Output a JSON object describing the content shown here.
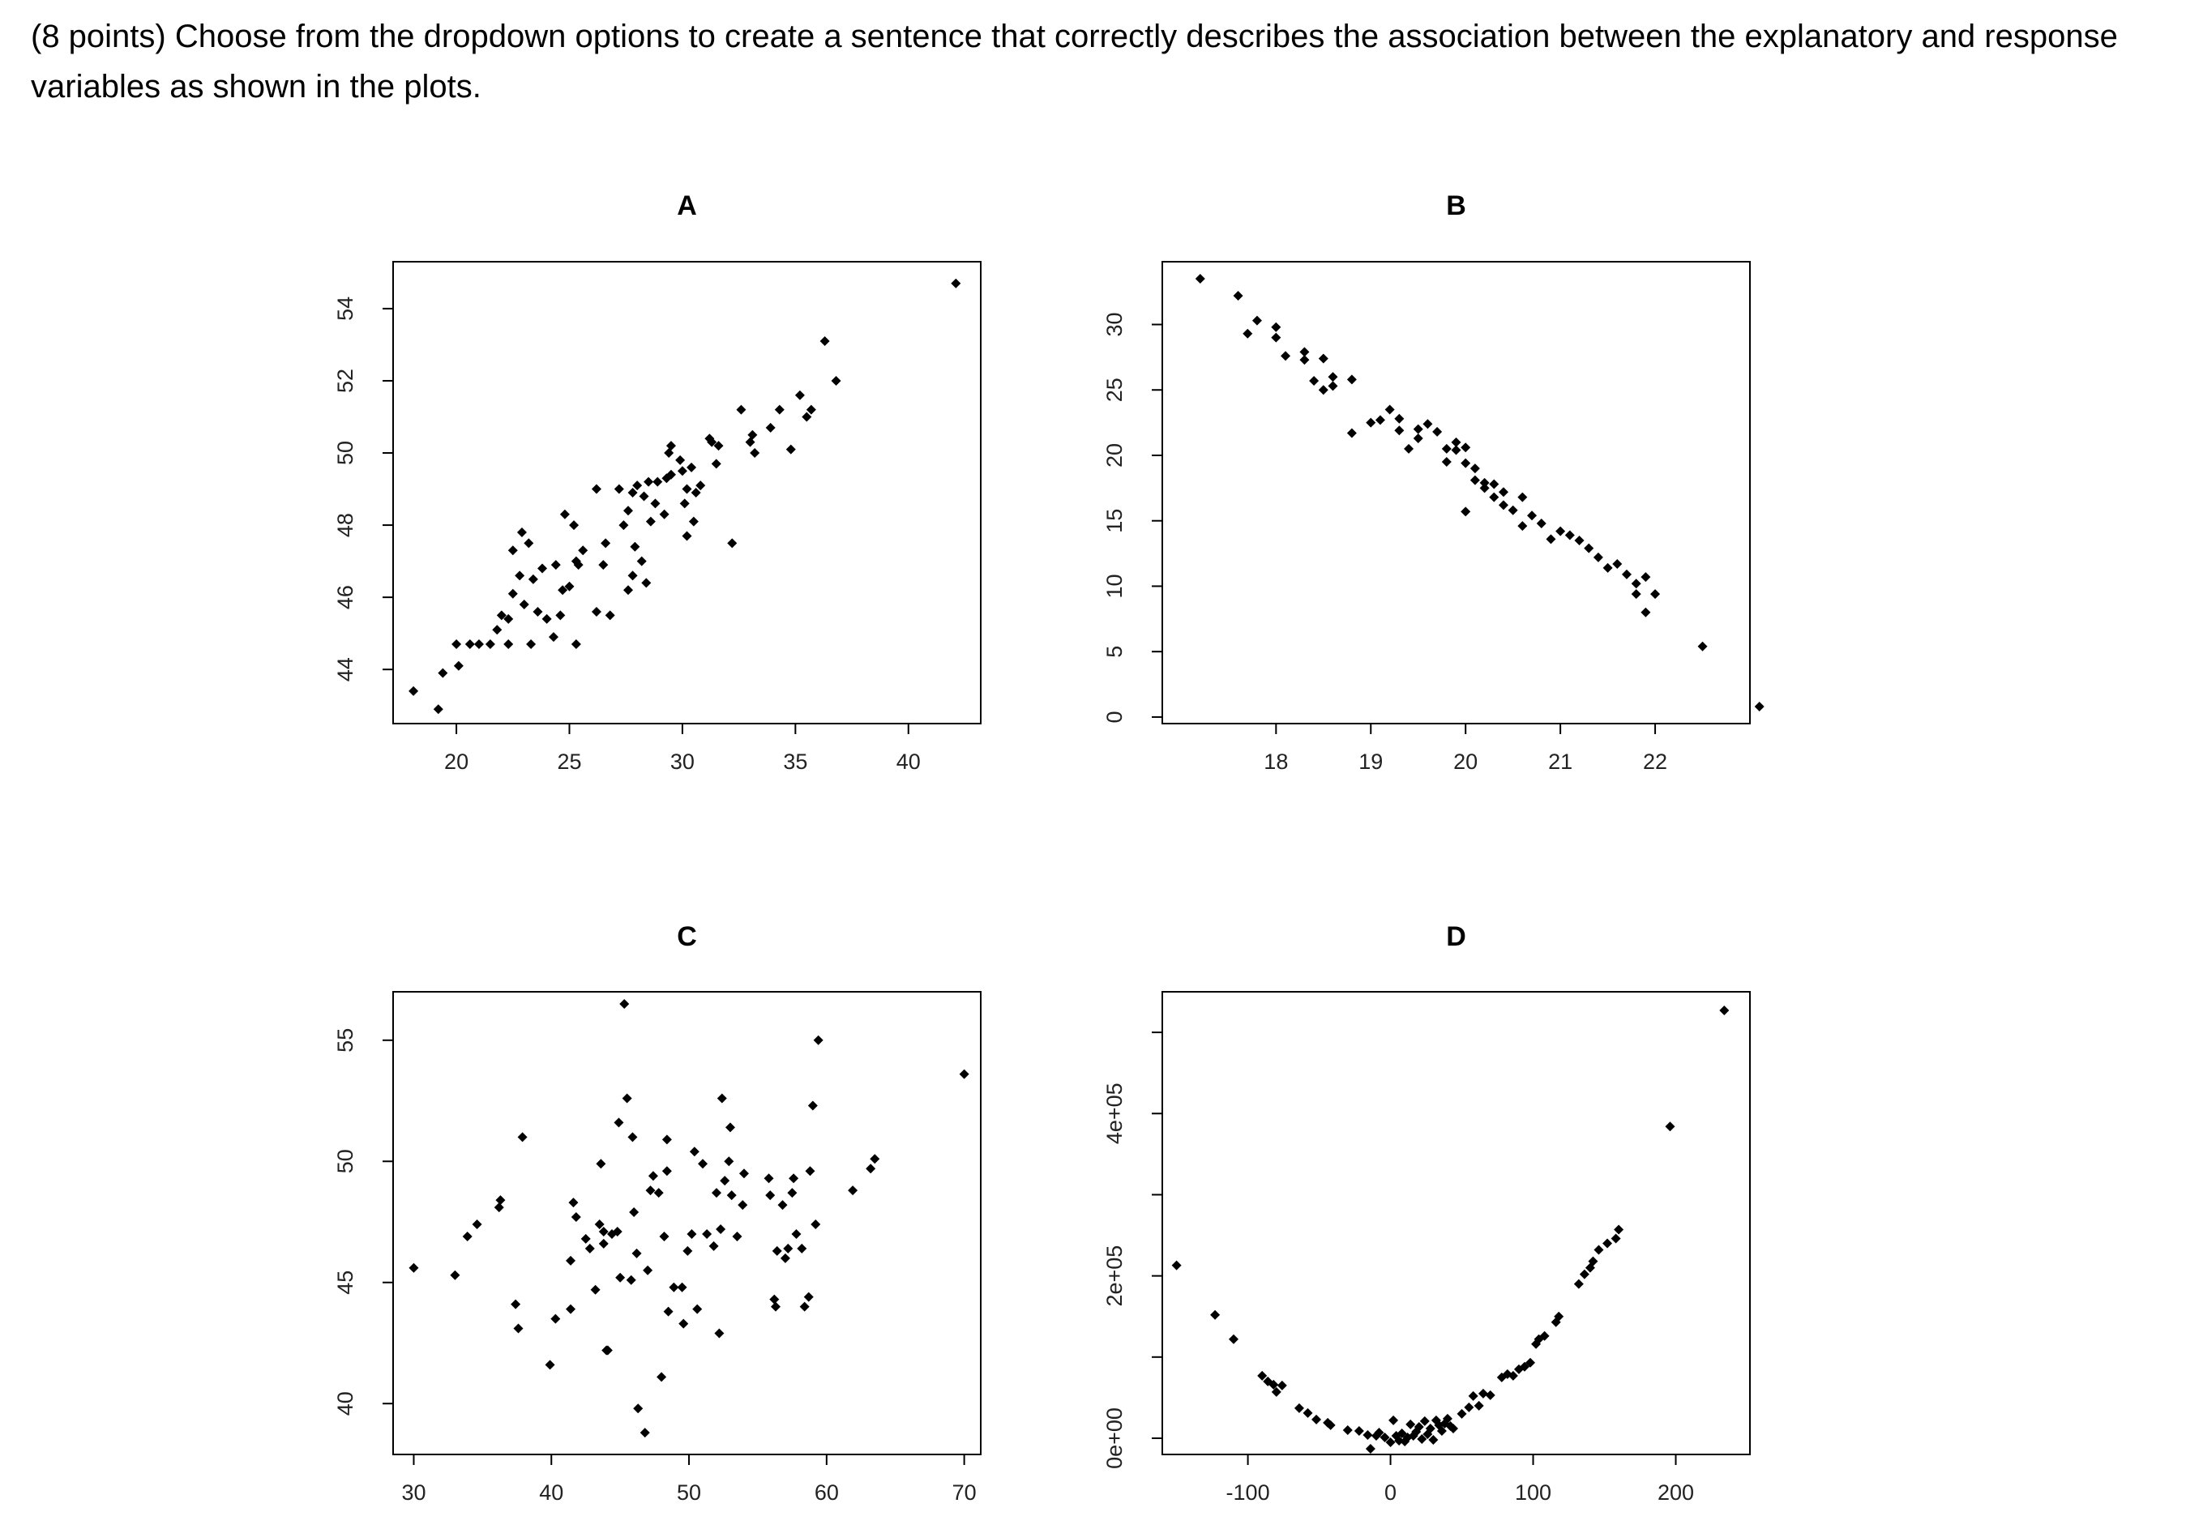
{
  "question": {
    "text": "(8 points) Choose from the dropdown options to create a sentence that correctly describes the association between the explanatory and response variables as shown in the plots."
  },
  "chart_data": [
    {
      "type": "scatter",
      "title": "A",
      "xlabel": "",
      "ylabel": "",
      "xlim": [
        17.2,
        43.2
      ],
      "ylim": [
        42.5,
        55.3
      ],
      "xticks": [
        20,
        25,
        30,
        35,
        40
      ],
      "xtick_labels": [
        "20",
        "25",
        "30",
        "35",
        "40"
      ],
      "yticks": [
        44,
        46,
        48,
        50,
        52,
        54
      ],
      "ytick_labels": [
        "44",
        "46",
        "48",
        "50",
        "52",
        "54"
      ],
      "points": [
        [
          18.1,
          43.4
        ],
        [
          19.2,
          42.9
        ],
        [
          19.4,
          43.9
        ],
        [
          20.1,
          44.1
        ],
        [
          20.0,
          44.7
        ],
        [
          20.6,
          44.7
        ],
        [
          21.0,
          44.7
        ],
        [
          21.5,
          44.7
        ],
        [
          21.8,
          45.1
        ],
        [
          22.0,
          45.5
        ],
        [
          22.3,
          45.4
        ],
        [
          22.5,
          46.1
        ],
        [
          22.8,
          46.6
        ],
        [
          22.5,
          47.3
        ],
        [
          23.2,
          47.5
        ],
        [
          22.9,
          47.8
        ],
        [
          22.3,
          44.7
        ],
        [
          23.3,
          44.7
        ],
        [
          23.0,
          45.8
        ],
        [
          23.6,
          45.6
        ],
        [
          23.4,
          46.5
        ],
        [
          24.0,
          45.4
        ],
        [
          23.8,
          46.8
        ],
        [
          24.4,
          46.9
        ],
        [
          24.3,
          44.9
        ],
        [
          24.6,
          45.5
        ],
        [
          24.7,
          46.2
        ],
        [
          25.0,
          46.3
        ],
        [
          25.3,
          47.0
        ],
        [
          25.6,
          47.3
        ],
        [
          25.3,
          44.7
        ],
        [
          25.4,
          46.9
        ],
        [
          24.8,
          48.3
        ],
        [
          25.2,
          48.0
        ],
        [
          26.2,
          49.0
        ],
        [
          26.2,
          45.6
        ],
        [
          26.8,
          45.5
        ],
        [
          26.5,
          46.9
        ],
        [
          26.6,
          47.5
        ],
        [
          27.4,
          48.0
        ],
        [
          27.6,
          48.4
        ],
        [
          27.2,
          49.0
        ],
        [
          27.8,
          48.9
        ],
        [
          27.6,
          46.2
        ],
        [
          27.8,
          46.6
        ],
        [
          27.9,
          47.4
        ],
        [
          28.2,
          47.0
        ],
        [
          28.4,
          46.4
        ],
        [
          28.0,
          49.1
        ],
        [
          28.3,
          48.8
        ],
        [
          28.5,
          49.2
        ],
        [
          28.9,
          49.2
        ],
        [
          28.8,
          48.6
        ],
        [
          28.6,
          48.1
        ],
        [
          29.2,
          48.3
        ],
        [
          29.3,
          49.3
        ],
        [
          29.5,
          49.4
        ],
        [
          29.4,
          50.0
        ],
        [
          29.5,
          50.2
        ],
        [
          29.9,
          49.8
        ],
        [
          30.0,
          49.5
        ],
        [
          30.2,
          49.0
        ],
        [
          30.1,
          48.6
        ],
        [
          30.4,
          49.6
        ],
        [
          30.5,
          48.1
        ],
        [
          30.2,
          47.7
        ],
        [
          30.6,
          48.9
        ],
        [
          30.8,
          49.1
        ],
        [
          31.2,
          50.4
        ],
        [
          31.5,
          49.7
        ],
        [
          31.6,
          50.2
        ],
        [
          31.3,
          50.3
        ],
        [
          32.2,
          47.5
        ],
        [
          32.6,
          51.2
        ],
        [
          33.2,
          50.0
        ],
        [
          33.1,
          50.5
        ],
        [
          33.0,
          50.3
        ],
        [
          33.9,
          50.7
        ],
        [
          34.3,
          51.2
        ],
        [
          34.8,
          50.1
        ],
        [
          35.5,
          51.0
        ],
        [
          35.2,
          51.6
        ],
        [
          35.7,
          51.2
        ],
        [
          36.3,
          53.1
        ],
        [
          36.8,
          52.0
        ],
        [
          42.1,
          54.7
        ]
      ]
    },
    {
      "type": "scatter",
      "title": "B",
      "xlabel": "",
      "ylabel": "",
      "xlim": [
        16.8,
        23.0
      ],
      "ylim": [
        -0.5,
        34.8
      ],
      "xticks": [
        18,
        19,
        20,
        21,
        22
      ],
      "xtick_labels": [
        "18",
        "19",
        "20",
        "21",
        "22"
      ],
      "yticks": [
        0,
        5,
        10,
        15,
        20,
        25,
        30
      ],
      "ytick_labels": [
        "0",
        "5",
        "10",
        "15",
        "20",
        "25",
        "30"
      ],
      "points": [
        [
          17.2,
          33.5
        ],
        [
          17.6,
          32.2
        ],
        [
          17.7,
          29.3
        ],
        [
          17.8,
          30.3
        ],
        [
          18.0,
          29.0
        ],
        [
          18.0,
          29.8
        ],
        [
          18.1,
          27.6
        ],
        [
          18.3,
          27.9
        ],
        [
          18.3,
          27.3
        ],
        [
          18.4,
          25.7
        ],
        [
          18.5,
          27.4
        ],
        [
          18.6,
          26.0
        ],
        [
          18.5,
          25.0
        ],
        [
          18.8,
          25.8
        ],
        [
          18.6,
          25.3
        ],
        [
          18.8,
          21.7
        ],
        [
          19.0,
          22.5
        ],
        [
          19.1,
          22.7
        ],
        [
          19.2,
          23.5
        ],
        [
          19.3,
          22.8
        ],
        [
          19.3,
          21.9
        ],
        [
          19.5,
          22.0
        ],
        [
          19.5,
          21.3
        ],
        [
          19.6,
          22.4
        ],
        [
          19.7,
          21.8
        ],
        [
          19.8,
          20.5
        ],
        [
          19.9,
          21.0
        ],
        [
          19.8,
          19.5
        ],
        [
          20.0,
          20.6
        ],
        [
          20.0,
          19.4
        ],
        [
          20.1,
          19.0
        ],
        [
          20.1,
          18.1
        ],
        [
          20.2,
          17.5
        ],
        [
          20.3,
          17.8
        ],
        [
          20.3,
          16.8
        ],
        [
          20.4,
          17.2
        ],
        [
          20.4,
          16.2
        ],
        [
          20.6,
          16.8
        ],
        [
          20.5,
          15.8
        ],
        [
          20.7,
          15.4
        ],
        [
          20.8,
          14.8
        ],
        [
          20.9,
          13.6
        ],
        [
          21.0,
          14.2
        ],
        [
          21.1,
          13.9
        ],
        [
          21.2,
          13.5
        ],
        [
          21.4,
          12.2
        ],
        [
          21.5,
          11.4
        ],
        [
          21.6,
          11.7
        ],
        [
          21.7,
          10.9
        ],
        [
          21.8,
          10.2
        ],
        [
          21.8,
          9.4
        ],
        [
          21.9,
          10.7
        ],
        [
          22.0,
          9.4
        ],
        [
          21.9,
          8.0
        ],
        [
          22.5,
          5.4
        ],
        [
          23.1,
          0.8
        ],
        [
          19.9,
          20.4
        ],
        [
          20.2,
          17.9
        ],
        [
          20.6,
          14.6
        ],
        [
          21.3,
          12.9
        ],
        [
          20.0,
          15.7
        ],
        [
          19.4,
          20.5
        ]
      ]
    },
    {
      "type": "scatter",
      "title": "C",
      "xlabel": "",
      "ylabel": "",
      "xlim": [
        28.5,
        71.2
      ],
      "ylim": [
        37.9,
        57.0
      ],
      "xticks": [
        30,
        40,
        50,
        60,
        70
      ],
      "xtick_labels": [
        "30",
        "40",
        "50",
        "60",
        "70"
      ],
      "yticks": [
        40,
        45,
        50,
        55
      ],
      "ytick_labels": [
        "40",
        "45",
        "50",
        "55"
      ],
      "points": [
        [
          30.0,
          45.6
        ],
        [
          33.0,
          45.3
        ],
        [
          33.9,
          46.9
        ],
        [
          34.6,
          47.4
        ],
        [
          36.2,
          48.1
        ],
        [
          36.3,
          48.4
        ],
        [
          37.4,
          44.1
        ],
        [
          37.6,
          43.1
        ],
        [
          37.9,
          51.0
        ],
        [
          39.9,
          41.6
        ],
        [
          40.3,
          43.5
        ],
        [
          41.4,
          43.9
        ],
        [
          41.4,
          45.9
        ],
        [
          41.8,
          47.7
        ],
        [
          41.6,
          48.3
        ],
        [
          42.5,
          46.8
        ],
        [
          42.8,
          46.4
        ],
        [
          43.2,
          44.7
        ],
        [
          43.8,
          46.6
        ],
        [
          43.5,
          47.4
        ],
        [
          43.8,
          47.1
        ],
        [
          43.6,
          49.9
        ],
        [
          44.0,
          42.2
        ],
        [
          44.1,
          42.2
        ],
        [
          44.4,
          47.0
        ],
        [
          44.8,
          47.1
        ],
        [
          45.0,
          45.2
        ],
        [
          44.9,
          51.6
        ],
        [
          45.3,
          56.5
        ],
        [
          45.5,
          52.6
        ],
        [
          45.9,
          51.0
        ],
        [
          45.8,
          45.1
        ],
        [
          46.2,
          46.2
        ],
        [
          46.0,
          47.9
        ],
        [
          46.3,
          39.8
        ],
        [
          46.8,
          38.8
        ],
        [
          47.0,
          45.5
        ],
        [
          47.2,
          48.8
        ],
        [
          47.4,
          49.4
        ],
        [
          47.8,
          48.7
        ],
        [
          48.0,
          41.1
        ],
        [
          48.2,
          46.9
        ],
        [
          48.4,
          49.6
        ],
        [
          48.4,
          50.9
        ],
        [
          48.5,
          43.8
        ],
        [
          48.9,
          44.8
        ],
        [
          49.5,
          44.8
        ],
        [
          49.6,
          43.3
        ],
        [
          49.9,
          46.3
        ],
        [
          50.2,
          47.0
        ],
        [
          50.4,
          50.4
        ],
        [
          50.6,
          43.9
        ],
        [
          51.0,
          49.9
        ],
        [
          51.3,
          47.0
        ],
        [
          51.8,
          46.5
        ],
        [
          52.0,
          48.7
        ],
        [
          52.2,
          42.9
        ],
        [
          52.4,
          52.6
        ],
        [
          52.3,
          47.2
        ],
        [
          52.6,
          49.2
        ],
        [
          52.9,
          50.0
        ],
        [
          53.0,
          51.4
        ],
        [
          53.1,
          48.6
        ],
        [
          53.5,
          46.9
        ],
        [
          53.9,
          48.2
        ],
        [
          54.0,
          49.5
        ],
        [
          55.8,
          49.3
        ],
        [
          55.9,
          48.6
        ],
        [
          56.2,
          44.3
        ],
        [
          56.3,
          44.0
        ],
        [
          56.4,
          46.3
        ],
        [
          56.8,
          48.2
        ],
        [
          57.0,
          46.0
        ],
        [
          57.2,
          46.4
        ],
        [
          57.5,
          48.7
        ],
        [
          57.6,
          49.3
        ],
        [
          57.8,
          47.0
        ],
        [
          58.2,
          46.4
        ],
        [
          58.4,
          44.0
        ],
        [
          58.7,
          44.4
        ],
        [
          58.8,
          49.6
        ],
        [
          59.0,
          52.3
        ],
        [
          59.2,
          47.4
        ],
        [
          59.4,
          55.0
        ],
        [
          61.9,
          48.8
        ],
        [
          63.2,
          49.7
        ],
        [
          63.5,
          50.1
        ],
        [
          70.0,
          53.6
        ]
      ]
    },
    {
      "type": "scatter",
      "title": "D",
      "xlabel": "",
      "ylabel": "",
      "xlim": [
        -160,
        252
      ],
      "ylim": [
        -20000,
        550000
      ],
      "xticks": [
        -100,
        0,
        100,
        200
      ],
      "xtick_labels": [
        "-100",
        "0",
        "100",
        "200"
      ],
      "yticks": [
        0,
        100000,
        200000,
        300000,
        400000,
        500000
      ],
      "ytick_labels": [
        "0e+00",
        "",
        "2e+05",
        "",
        "4e+05",
        ""
      ],
      "points": [
        [
          -150,
          213000
        ],
        [
          -123,
          152000
        ],
        [
          -110,
          122000
        ],
        [
          -90,
          77000
        ],
        [
          -86,
          70000
        ],
        [
          -82,
          66000
        ],
        [
          -76,
          65000
        ],
        [
          -80,
          57000
        ],
        [
          -64,
          37000
        ],
        [
          -58,
          31000
        ],
        [
          -52,
          23000
        ],
        [
          -44,
          19000
        ],
        [
          -42,
          16000
        ],
        [
          -30,
          10000
        ],
        [
          -22,
          9000
        ],
        [
          -16,
          4000
        ],
        [
          -14,
          -13000
        ],
        [
          -10,
          3000
        ],
        [
          -8,
          7000
        ],
        [
          -4,
          1000
        ],
        [
          0,
          -5000
        ],
        [
          2,
          22000
        ],
        [
          4,
          3000
        ],
        [
          6,
          -3000
        ],
        [
          8,
          6000
        ],
        [
          10,
          -4000
        ],
        [
          12,
          1000
        ],
        [
          14,
          17000
        ],
        [
          16,
          3000
        ],
        [
          18,
          8000
        ],
        [
          20,
          14000
        ],
        [
          22,
          -1000
        ],
        [
          24,
          21000
        ],
        [
          26,
          5000
        ],
        [
          28,
          12000
        ],
        [
          30,
          -2000
        ],
        [
          32,
          22000
        ],
        [
          34,
          16000
        ],
        [
          36,
          9000
        ],
        [
          38,
          18000
        ],
        [
          40,
          24000
        ],
        [
          42,
          15000
        ],
        [
          44,
          12000
        ],
        [
          50,
          30000
        ],
        [
          55,
          38000
        ],
        [
          58,
          52000
        ],
        [
          62,
          40000
        ],
        [
          65,
          55000
        ],
        [
          70,
          53000
        ],
        [
          78,
          75000
        ],
        [
          82,
          79000
        ],
        [
          86,
          77000
        ],
        [
          90,
          85000
        ],
        [
          94,
          88000
        ],
        [
          98,
          93000
        ],
        [
          102,
          116000
        ],
        [
          104,
          122000
        ],
        [
          108,
          126000
        ],
        [
          116,
          143000
        ],
        [
          118,
          150000
        ],
        [
          132,
          190000
        ],
        [
          136,
          202000
        ],
        [
          140,
          210000
        ],
        [
          142,
          218000
        ],
        [
          146,
          232000
        ],
        [
          152,
          240000
        ],
        [
          158,
          246000
        ],
        [
          160,
          257000
        ],
        [
          196,
          384000
        ],
        [
          234,
          527000
        ]
      ]
    }
  ]
}
